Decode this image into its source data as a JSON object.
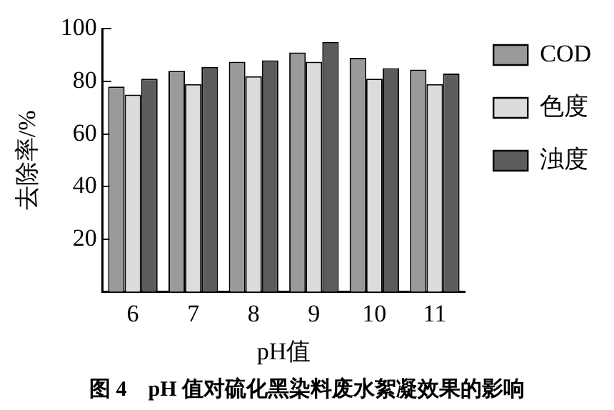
{
  "chart_data": {
    "type": "bar",
    "xlabel": "pH值",
    "ylabel": "去除率/%",
    "categories": [
      "6",
      "7",
      "8",
      "9",
      "10",
      "11"
    ],
    "series": [
      {
        "name": "COD",
        "color": "#9a9a9a",
        "values": [
          78,
          84,
          87.5,
          91,
          89,
          84.5
        ]
      },
      {
        "name": "色度",
        "color": "#dcdcdc",
        "values": [
          75,
          79,
          82,
          87.5,
          81,
          79
        ]
      },
      {
        "name": "浊度",
        "color": "#5c5c5c",
        "values": [
          81,
          85.5,
          88,
          95,
          85,
          83
        ]
      }
    ],
    "ylim": [
      0,
      100
    ],
    "yticks": [
      20,
      40,
      60,
      80,
      100
    ],
    "grid": false,
    "legend": "right",
    "annotations": [
      "图 4　pH 值对硫化黑染料废水絮凝效果的影响"
    ]
  }
}
